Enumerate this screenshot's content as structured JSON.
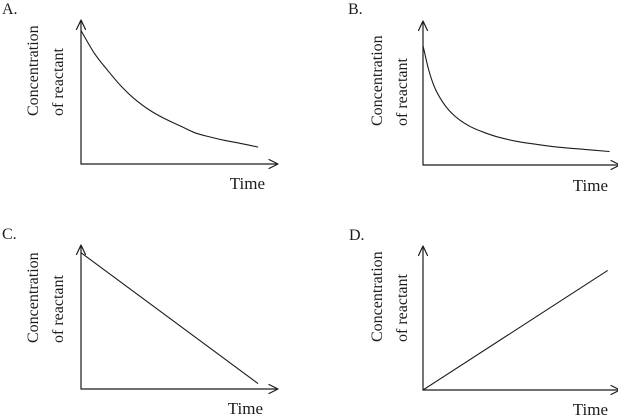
{
  "page": {
    "background": "#ffffff",
    "ink": "#1c1c1c"
  },
  "chart_data": [
    {
      "panel": "A.",
      "type": "line",
      "xlabel": "Time",
      "ylabel": "Concentration of reactant",
      "ylabel_lines": [
        "Concentration",
        "of reactant"
      ],
      "curve": "exponential decay leveling off toward the time axis",
      "axes": "unlabeled qualitative axes with arrowheads",
      "x_range": [
        0,
        1
      ],
      "y_range": [
        0,
        1
      ],
      "points": [
        [
          0,
          0.94
        ],
        [
          0.07,
          0.78
        ],
        [
          0.14,
          0.66
        ],
        [
          0.21,
          0.55
        ],
        [
          0.28,
          0.46
        ],
        [
          0.36,
          0.38
        ],
        [
          0.44,
          0.32
        ],
        [
          0.52,
          0.27
        ],
        [
          0.6,
          0.22
        ],
        [
          0.68,
          0.19
        ],
        [
          0.76,
          0.165
        ],
        [
          0.84,
          0.145
        ],
        [
          0.93,
          0.12
        ]
      ]
    },
    {
      "panel": "B.",
      "type": "line",
      "xlabel": "Time",
      "ylabel": "Concentration of reactant",
      "ylabel_lines": [
        "Concentration",
        "of reactant"
      ],
      "curve": "very steep initial decay flattening into a long shallow tail",
      "axes": "unlabeled qualitative axes with arrowheads",
      "x_range": [
        0,
        1
      ],
      "y_range": [
        0,
        1
      ],
      "points": [
        [
          0,
          0.84
        ],
        [
          0.03,
          0.67
        ],
        [
          0.06,
          0.55
        ],
        [
          0.1,
          0.45
        ],
        [
          0.14,
          0.38
        ],
        [
          0.19,
          0.32
        ],
        [
          0.25,
          0.27
        ],
        [
          0.32,
          0.23
        ],
        [
          0.4,
          0.195
        ],
        [
          0.5,
          0.165
        ],
        [
          0.6,
          0.145
        ],
        [
          0.72,
          0.125
        ],
        [
          0.85,
          0.11
        ],
        [
          0.98,
          0.095
        ]
      ]
    },
    {
      "panel": "C.",
      "type": "line",
      "xlabel": "Time",
      "ylabel": "Concentration of reactant",
      "ylabel_lines": [
        "Concentration",
        "of reactant"
      ],
      "curve": "straight line decreasing from top of y-axis to the time axis",
      "axes": "unlabeled qualitative axes with arrowheads",
      "x_range": [
        0,
        1
      ],
      "y_range": [
        0,
        1
      ],
      "points": [
        [
          0,
          0.96
        ],
        [
          0.93,
          0.04
        ]
      ]
    },
    {
      "panel": "D.",
      "type": "line",
      "xlabel": "Time",
      "ylabel": "Concentration of reactant",
      "ylabel_lines": [
        "Concentration",
        "of reactant"
      ],
      "curve": "straight line increasing from the origin",
      "axes": "unlabeled qualitative axes with arrowheads",
      "x_range": [
        0,
        1
      ],
      "y_range": [
        0,
        1
      ],
      "points": [
        [
          0,
          0
        ],
        [
          0.97,
          0.84
        ]
      ]
    }
  ]
}
